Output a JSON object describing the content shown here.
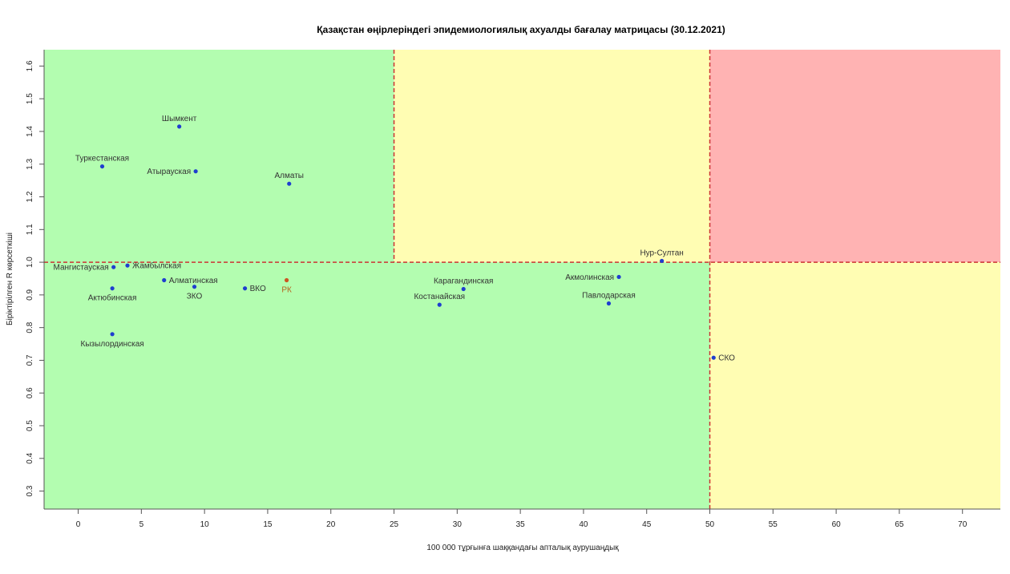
{
  "chart_data": {
    "type": "scatter",
    "title": "Қазақстан өңірлеріндегі эпидемиологиялық ахуалды бағалау матрицасы  (30.12.2021)",
    "xlabel": "100 000 тұрғынға шаққандағы апталық аурушаңдық",
    "ylabel": "Біріктірілген R көрсеткіші",
    "xlim": [
      -2.7,
      73
    ],
    "ylim": [
      0.245,
      1.65
    ],
    "xticks": [
      0,
      5,
      10,
      15,
      20,
      25,
      30,
      35,
      40,
      45,
      50,
      55,
      60,
      65,
      70
    ],
    "yticks": [
      0.3,
      0.4,
      0.5,
      0.6,
      0.7,
      0.8,
      0.9,
      1.0,
      1.1,
      1.2,
      1.3,
      1.4,
      1.5,
      1.6
    ],
    "ytick_labels": [
      "0.3",
      "0.4",
      "0.5",
      "0.6",
      "0.7",
      "0.8",
      "0.9",
      "1.0",
      "1.1",
      "1.2",
      "1.3",
      "1.4",
      "1.5",
      "1.6"
    ],
    "zones": [
      {
        "x": [
          -2.7,
          25
        ],
        "y": [
          1.0,
          1.65
        ],
        "color": "#b3fdb0"
      },
      {
        "x": [
          25,
          50
        ],
        "y": [
          1.0,
          1.65
        ],
        "color": "#fffdb3"
      },
      {
        "x": [
          50,
          73
        ],
        "y": [
          1.0,
          1.65
        ],
        "color": "#ffb3b3"
      },
      {
        "x": [
          -2.7,
          50
        ],
        "y": [
          0.245,
          1.0
        ],
        "color": "#b3fdb0"
      },
      {
        "x": [
          50,
          73
        ],
        "y": [
          0.245,
          1.0
        ],
        "color": "#fffdb3"
      }
    ],
    "reference_lines": {
      "vertical": [
        {
          "x": 25,
          "y": [
            1.0,
            1.65
          ]
        },
        {
          "x": 50,
          "y": [
            0.245,
            1.65
          ]
        }
      ],
      "horizontal": [
        {
          "y": 1.0,
          "x": [
            -2.7,
            73
          ]
        }
      ],
      "color": "#cc3333"
    },
    "points": [
      {
        "name": "Шымкент",
        "x": 8.0,
        "y": 1.415,
        "label_pos": "above",
        "color": "#1f3ecf"
      },
      {
        "name": "Туркестанская",
        "x": 1.9,
        "y": 1.293,
        "label_pos": "above",
        "color": "#1f3ecf"
      },
      {
        "name": "Атырауская",
        "x": 9.3,
        "y": 1.278,
        "label_pos": "left",
        "color": "#1f3ecf"
      },
      {
        "name": "Алматы",
        "x": 16.7,
        "y": 1.24,
        "label_pos": "above",
        "color": "#1f3ecf"
      },
      {
        "name": "Нур-Султан",
        "x": 46.2,
        "y": 1.004,
        "label_pos": "above",
        "color": "#1f3ecf"
      },
      {
        "name": "Мангистауская",
        "x": 2.8,
        "y": 0.985,
        "label_pos": "left",
        "color": "#1f3ecf"
      },
      {
        "name": "Жамбылская",
        "x": 3.9,
        "y": 0.99,
        "label_pos": "right",
        "color": "#1f3ecf"
      },
      {
        "name": "Алматинская",
        "x": 6.8,
        "y": 0.945,
        "label_pos": "right",
        "color": "#1f3ecf"
      },
      {
        "name": "ЗКО",
        "x": 9.2,
        "y": 0.925,
        "label_pos": "below",
        "color": "#1f3ecf"
      },
      {
        "name": "Актюбинская",
        "x": 2.7,
        "y": 0.92,
        "label_pos": "below",
        "color": "#1f3ecf"
      },
      {
        "name": "ВКО",
        "x": 13.2,
        "y": 0.92,
        "label_pos": "right",
        "color": "#1f3ecf"
      },
      {
        "name": "РК",
        "x": 16.5,
        "y": 0.945,
        "label_pos": "below",
        "color": "#cc5522"
      },
      {
        "name": "Карагандинская",
        "x": 30.5,
        "y": 0.918,
        "label_pos": "above",
        "color": "#1f3ecf"
      },
      {
        "name": "Костанайская",
        "x": 28.6,
        "y": 0.87,
        "label_pos": "above",
        "color": "#1f3ecf"
      },
      {
        "name": "Акмолинская",
        "x": 42.8,
        "y": 0.955,
        "label_pos": "left",
        "color": "#1f3ecf"
      },
      {
        "name": "Павлодарская",
        "x": 42.0,
        "y": 0.874,
        "label_pos": "above",
        "color": "#1f3ecf"
      },
      {
        "name": "Кызылординская",
        "x": 2.7,
        "y": 0.78,
        "label_pos": "below",
        "color": "#1f3ecf"
      },
      {
        "name": "СКО",
        "x": 50.3,
        "y": 0.708,
        "label_pos": "right",
        "color": "#1f3ecf"
      }
    ],
    "grid": false,
    "legend": "none"
  }
}
